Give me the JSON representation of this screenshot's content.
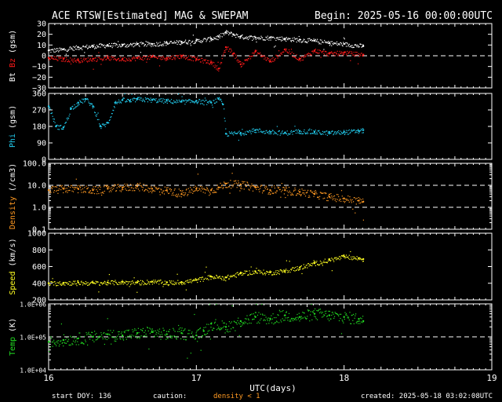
{
  "header": {
    "title": "ACE RTSW[Estimated] MAG & SWEPAM",
    "begin": "Begin: 2025-05-16 00:00:00UTC"
  },
  "footer": {
    "start_doy": "start DOY: 136",
    "caution": "caution:",
    "density_note": "density < 1",
    "created": "created: 2025-05-18 03:02:08UTC"
  },
  "colors": {
    "background": "#000000",
    "axes": "#ffffff",
    "bt": "#ffffff",
    "bz": "#ff1a1a",
    "phi": "#22ccee",
    "density": "#ff9922",
    "speed": "#ffff22",
    "temp": "#22dd22",
    "caution": "#ff9922"
  },
  "chart_data": {
    "type": "scatter",
    "title": "ACE RTSW[Estimated] MAG & SWEPAM",
    "xlabel": "UTC(days)",
    "xlim": [
      16,
      19
    ],
    "x_ticks": [
      "16",
      "17",
      "18",
      "19"
    ],
    "data_end_day": 18.13,
    "panels": [
      {
        "id": "bz",
        "ylabel_parts": [
          "Bt",
          "Bz",
          "(gsm)"
        ],
        "ylabel_colors": [
          "#ffffff",
          "#ff1a1a",
          "#ffffff"
        ],
        "ylim": [
          -30,
          30
        ],
        "ticks": [
          "30",
          "20",
          "10",
          "0",
          "−10",
          "−20",
          "−30"
        ],
        "tick_values": [
          30,
          20,
          10,
          0,
          -10,
          -20,
          -30
        ],
        "reference_line": 0,
        "series": [
          {
            "name": "Bt",
            "color": "#ffffff",
            "x": [
              16.0,
              16.1,
              16.2,
              16.3,
              16.4,
              16.5,
              16.6,
              16.7,
              16.8,
              16.9,
              17.0,
              17.1,
              17.15,
              17.2,
              17.25,
              17.3,
              17.4,
              17.5,
              17.6,
              17.7,
              17.8,
              17.9,
              18.0,
              18.13
            ],
            "values": [
              5,
              6,
              8,
              9,
              10,
              10,
              11,
              11,
              12,
              13,
              14,
              16,
              18,
              22,
              20,
              18,
              17,
              17,
              16,
              15,
              14,
              12,
              11,
              9
            ]
          },
          {
            "name": "Bz",
            "color": "#ff1a1a",
            "x": [
              16.0,
              16.1,
              16.2,
              16.3,
              16.4,
              16.5,
              16.6,
              16.7,
              16.8,
              16.9,
              17.0,
              17.1,
              17.15,
              17.2,
              17.25,
              17.3,
              17.4,
              17.5,
              17.6,
              17.7,
              17.8,
              17.9,
              18.0,
              18.13
            ],
            "values": [
              -2,
              -3,
              -4,
              -3,
              -2,
              -3,
              -2,
              -1,
              -2,
              0,
              -3,
              -6,
              -12,
              8,
              2,
              -8,
              4,
              -5,
              6,
              -3,
              5,
              2,
              3,
              1
            ]
          }
        ]
      },
      {
        "id": "phi",
        "ylabel_parts": [
          "Phi",
          "(gsm)"
        ],
        "ylabel_colors": [
          "#22ccee",
          "#ffffff"
        ],
        "ylim": [
          0,
          360
        ],
        "ticks": [
          "360",
          "270",
          "180",
          "90",
          "0"
        ],
        "tick_values": [
          360,
          270,
          180,
          90,
          0
        ],
        "series": [
          {
            "name": "Phi",
            "color": "#22ccee",
            "x": [
              16.0,
              16.05,
              16.1,
              16.15,
              16.2,
              16.25,
              16.3,
              16.35,
              16.4,
              16.45,
              16.5,
              16.55,
              16.6,
              16.7,
              16.8,
              16.9,
              17.0,
              17.1,
              17.15,
              17.18,
              17.2,
              17.3,
              17.4,
              17.5,
              17.6,
              17.7,
              17.8,
              17.9,
              18.0,
              18.1,
              18.13
            ],
            "values": [
              290,
              180,
              175,
              280,
              310,
              330,
              290,
              180,
              200,
              310,
              325,
              320,
              330,
              325,
              320,
              315,
              320,
              310,
              330,
              300,
              140,
              145,
              160,
              150,
              145,
              155,
              150,
              145,
              150,
              155,
              160
            ]
          }
        ]
      },
      {
        "id": "density",
        "ylabel_parts": [
          "Density",
          "(/cm3)"
        ],
        "ylabel_colors": [
          "#ff9922",
          "#ffffff"
        ],
        "scale": "log",
        "ylim": [
          0.1,
          100
        ],
        "ticks": [
          "100.0",
          "10.0",
          "1.0",
          "0.1"
        ],
        "tick_values": [
          100,
          10,
          1,
          0.1
        ],
        "reference_lines": [
          1,
          10
        ],
        "series": [
          {
            "name": "Density",
            "color": "#ff9922",
            "x": [
              16.0,
              16.1,
              16.2,
              16.3,
              16.4,
              16.5,
              16.6,
              16.7,
              16.8,
              16.9,
              17.0,
              17.1,
              17.15,
              17.2,
              17.3,
              17.4,
              17.5,
              17.6,
              17.7,
              17.8,
              17.9,
              18.0,
              18.1,
              18.13
            ],
            "values": [
              6,
              7,
              7,
              6,
              7,
              8,
              9,
              7,
              6,
              4,
              7,
              6,
              8,
              12,
              11,
              8,
              6,
              6,
              5,
              4,
              3,
              2.5,
              2,
              1.8
            ]
          }
        ]
      },
      {
        "id": "speed",
        "ylabel_parts": [
          "Speed",
          "(km/s)"
        ],
        "ylabel_colors": [
          "#ffff22",
          "#ffffff"
        ],
        "ylim": [
          200,
          1000
        ],
        "ticks": [
          "1000",
          "800",
          "600",
          "400",
          "200"
        ],
        "tick_values": [
          1000,
          800,
          600,
          400,
          200
        ],
        "series": [
          {
            "name": "Speed",
            "color": "#ffff22",
            "x": [
              16.0,
              16.1,
              16.2,
              16.3,
              16.4,
              16.5,
              16.6,
              16.7,
              16.8,
              16.9,
              17.0,
              17.1,
              17.2,
              17.3,
              17.4,
              17.5,
              17.6,
              17.7,
              17.8,
              17.9,
              18.0,
              18.1,
              18.13
            ],
            "values": [
              400,
              405,
              410,
              405,
              410,
              415,
              410,
              420,
              410,
              415,
              440,
              480,
              470,
              520,
              540,
              530,
              550,
              590,
              640,
              680,
              720,
              700,
              690
            ]
          }
        ]
      },
      {
        "id": "temp",
        "ylabel_parts": [
          "Temp",
          "(K)"
        ],
        "ylabel_colors": [
          "#22dd22",
          "#ffffff"
        ],
        "scale": "log",
        "ylim": [
          10000,
          1000000
        ],
        "ticks": [
          "1.0E+06",
          "1.0E+05",
          "1.0E+04"
        ],
        "tick_values": [
          1000000,
          100000,
          10000
        ],
        "reference_line": 100000,
        "series": [
          {
            "name": "Temp",
            "color": "#22dd22",
            "x": [
              16.0,
              16.1,
              16.2,
              16.3,
              16.4,
              16.5,
              16.6,
              16.7,
              16.8,
              16.9,
              17.0,
              17.05,
              17.1,
              17.2,
              17.3,
              17.4,
              17.5,
              17.6,
              17.7,
              17.8,
              17.9,
              18.0,
              18.1,
              18.13
            ],
            "values": [
              70000,
              80000,
              90000,
              100000,
              120000,
              110000,
              130000,
              140000,
              120000,
              130000,
              110000,
              150000,
              250000,
              200000,
              300000,
              400000,
              350000,
              450000,
              400000,
              500000,
              450000,
              400000,
              350000,
              300000
            ]
          }
        ]
      }
    ]
  }
}
